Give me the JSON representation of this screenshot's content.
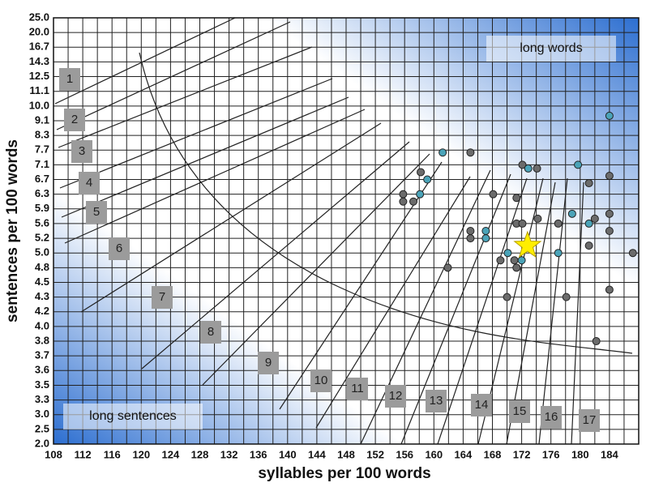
{
  "chart_data": {
    "type": "scatter",
    "x_title": "syllables per 100 words",
    "y_title": "sentences per 100 words",
    "annotations": [
      "long words",
      "long sentences"
    ],
    "grade_labels": [
      "1",
      "2",
      "3",
      "4",
      "5",
      "6",
      "7",
      "8",
      "9",
      "10",
      "11",
      "12",
      "13",
      "14",
      "15",
      "16",
      "17"
    ],
    "xlim": [
      108,
      188
    ],
    "xticks": [
      108,
      112,
      116,
      120,
      124,
      128,
      132,
      136,
      140,
      144,
      148,
      152,
      156,
      160,
      164,
      168,
      172,
      176,
      180,
      184
    ],
    "ylim": [
      2,
      25
    ],
    "yticks": [
      {
        "value": 25,
        "label": "25.0"
      },
      {
        "value": 20,
        "label": "20.0"
      },
      16.7,
      14.3,
      12.5,
      11.1,
      {
        "value": 10,
        "label": "10.0"
      },
      9.1,
      8.3,
      7.7,
      7.1,
      6.7,
      6.3,
      5.9,
      5.6,
      5.2,
      {
        "value": 5,
        "label": "5.0"
      },
      4.8,
      4.5,
      4.3,
      4.2,
      {
        "value": 4,
        "label": "4.0"
      },
      3.8,
      3.7,
      3.6,
      3.5,
      3.3,
      {
        "value": 3,
        "label": "3.0"
      },
      2.5,
      {
        "value": 2,
        "label": "2.0"
      }
    ],
    "grid": true,
    "series": [
      {
        "color": "#6b6b6b",
        "x": [
          158.2,
          155.8,
          155.8,
          157.2,
          165.0,
          165.0,
          165.0,
          161.9,
          168.1,
          169.1,
          170.0,
          171.0,
          171.3,
          171.3,
          171.3,
          172.1,
          172.1,
          174.2,
          174.1,
          177.0,
          178.1,
          181.2,
          181.2,
          182.0,
          182.2,
          184.0,
          184.0,
          184.0,
          184.0,
          187.2
        ],
        "values": [
          6.9,
          6.3,
          6.1,
          6.1,
          7.6,
          5.4,
          5.2,
          4.8,
          6.3,
          4.9,
          4.3,
          4.9,
          6.2,
          5.6,
          4.8,
          7.1,
          5.6,
          5.7,
          7.0,
          5.6,
          4.3,
          6.6,
          5.1,
          5.7,
          3.8,
          6.8,
          5.8,
          5.4,
          4.4,
          5.0
        ]
      },
      {
        "color": "#4aa3b8",
        "x": [
          161.2,
          159.1,
          158.1,
          167.1,
          167.1,
          170.1,
          172.0,
          172.9,
          177.0,
          178.9,
          179.7,
          181.2,
          184.0
        ],
        "values": [
          7.6,
          6.7,
          6.3,
          5.4,
          5.2,
          5.0,
          4.9,
          7.0,
          5.0,
          5.8,
          7.1,
          5.6,
          9.4
        ]
      }
    ],
    "highlight": {
      "x": 172.8,
      "value": 5.1,
      "color": "#ffee00"
    }
  }
}
